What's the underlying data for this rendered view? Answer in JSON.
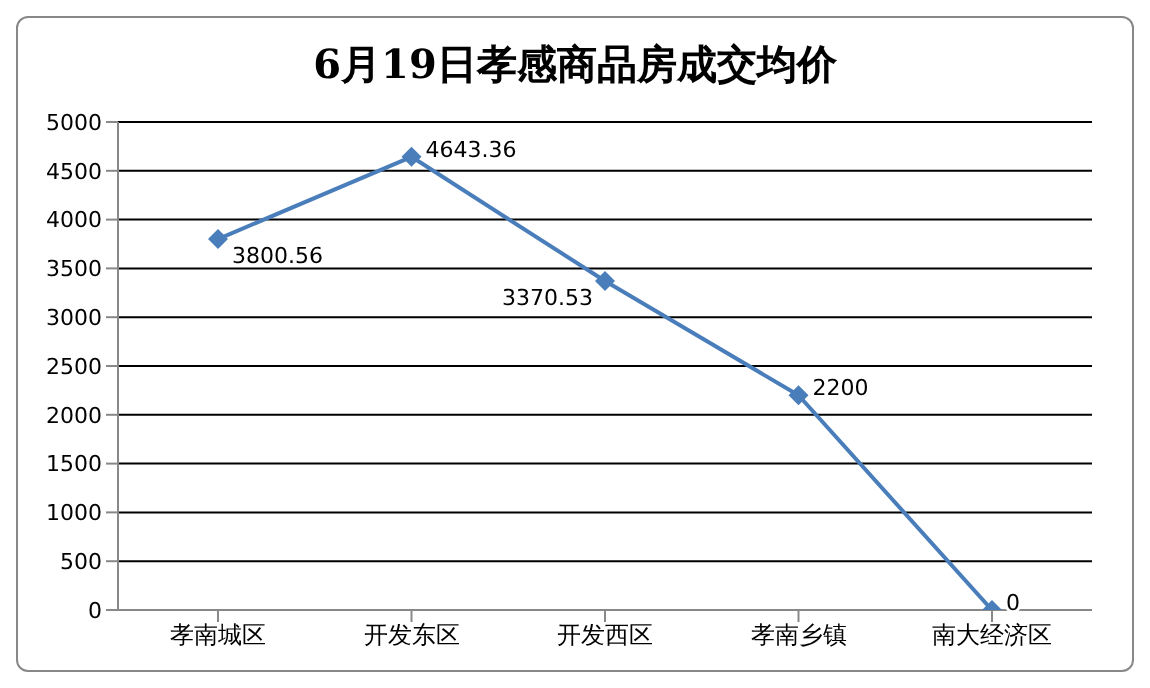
{
  "chart_data": {
    "type": "line",
    "title": "6月19日孝感商品房成交均价",
    "categories": [
      "孝南城区",
      "开发东区",
      "开发西区",
      "孝南乡镇",
      "南大经济区"
    ],
    "series": [
      {
        "color": "#4a7ebb",
        "values": [
          3800.56,
          4643.36,
          3370.53,
          2200,
          0
        ]
      }
    ],
    "ylim": [
      0,
      5000
    ],
    "yticks": [
      0,
      500,
      1000,
      1500,
      2000,
      2500,
      3000,
      3500,
      4000,
      4500,
      5000
    ],
    "grid": "y",
    "legend": false,
    "marker": "diamond",
    "line_style": "solid",
    "data_labels": true
  }
}
